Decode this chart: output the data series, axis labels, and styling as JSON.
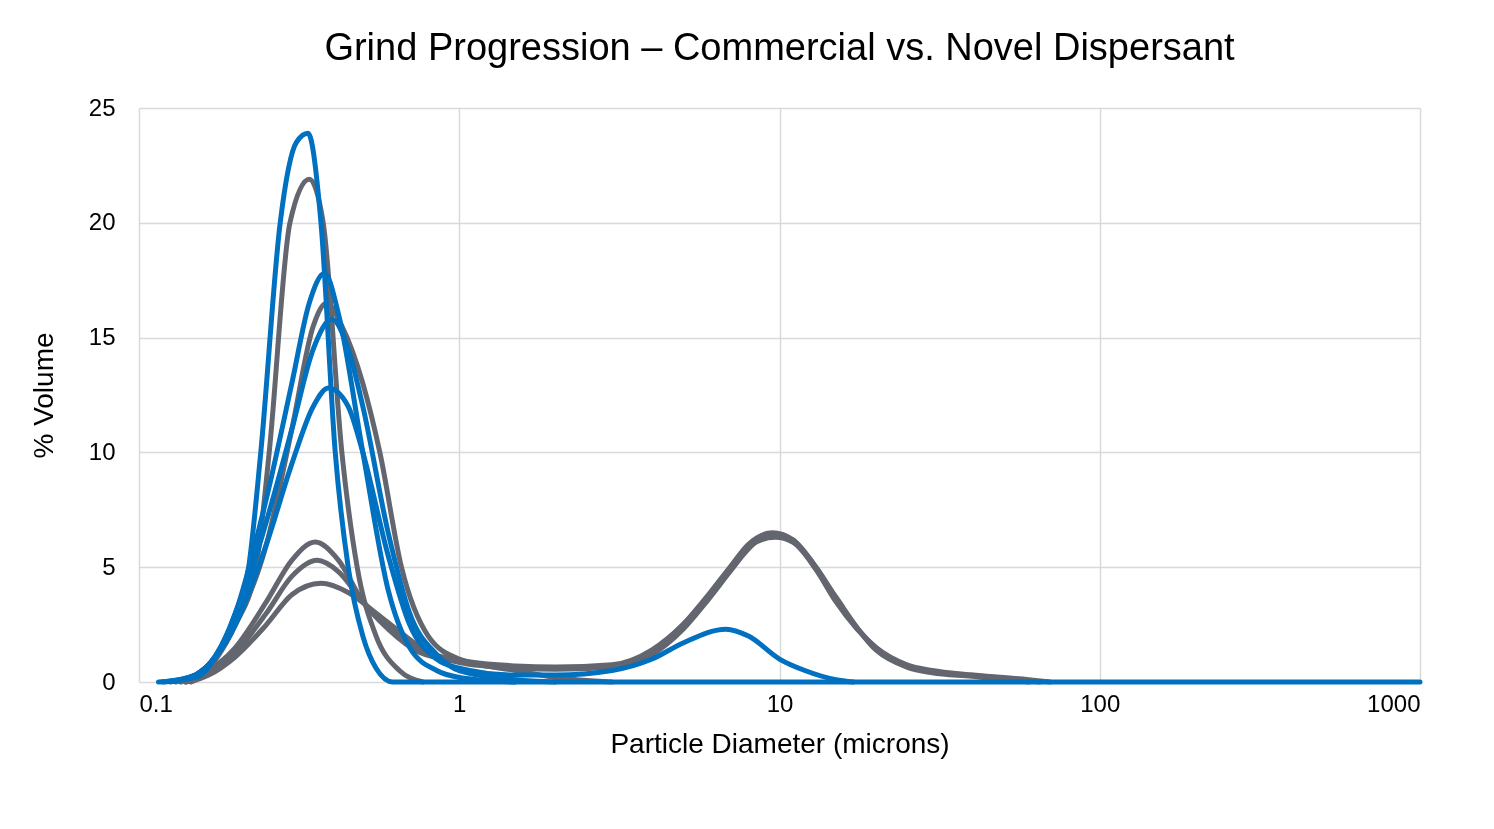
{
  "chart_data": {
    "type": "line",
    "title": "Grind Progression – Commercial vs. Novel Dispersant",
    "xlabel": "Particle Diameter (microns)",
    "ylabel": "% Volume",
    "log": "x",
    "xlim": [
      0.1,
      1000
    ],
    "xticks": [
      0.1,
      1,
      10,
      100,
      1000
    ],
    "ylim": [
      0,
      25
    ],
    "yticks": [
      0,
      5,
      10,
      15,
      20,
      25
    ],
    "grid": true,
    "legend": false,
    "line_style": "solid",
    "marker": "none",
    "series": [
      {
        "color": "#63666f",
        "x": [
          0.13,
          0.15,
          0.2,
          0.232,
          0.255,
          0.296,
          0.34,
          0.376,
          0.43,
          0.48,
          0.55,
          0.65,
          0.77
        ],
        "values": [
          0,
          0.3,
          2.5,
          5,
          10,
          20,
          21.9,
          20,
          10,
          5,
          2,
          0.5,
          0
        ]
      },
      {
        "color": "#63666f",
        "x": [
          0.14,
          0.16,
          0.2,
          0.25,
          0.3,
          0.35,
          0.385,
          0.43,
          0.5,
          0.565,
          0.66,
          0.8,
          1,
          1.5,
          2,
          3
        ],
        "values": [
          0,
          0.4,
          2.5,
          6,
          11,
          15.5,
          16.5,
          15.5,
          13,
          10,
          5,
          2,
          1,
          0.5,
          0.2,
          0
        ]
      },
      {
        "color": "#63666f",
        "x": [
          0.135,
          0.155,
          0.2,
          0.25,
          0.3,
          0.355,
          0.42,
          0.5,
          0.6,
          0.75,
          1,
          1.5,
          2,
          3,
          4,
          5,
          6,
          7,
          8,
          9.5,
          11,
          13,
          15,
          20,
          25,
          30,
          40,
          60,
          70
        ],
        "values": [
          0,
          0.3,
          1.5,
          3.5,
          5.3,
          6.1,
          5.3,
          3.5,
          2.3,
          1.3,
          0.9,
          0.65,
          0.6,
          0.7,
          1.3,
          2.5,
          3.8,
          5,
          6,
          6.5,
          6.2,
          5,
          3.6,
          1.5,
          0.7,
          0.45,
          0.3,
          0.1,
          0
        ]
      },
      {
        "color": "#63666f",
        "x": [
          0.14,
          0.16,
          0.2,
          0.25,
          0.3,
          0.36,
          0.42,
          0.5,
          0.6,
          0.75,
          1,
          1.5,
          2,
          3,
          4,
          5,
          6,
          7,
          8,
          9.3,
          11,
          13,
          15,
          20,
          25,
          30,
          40,
          55,
          65
        ],
        "values": [
          0,
          0.3,
          1.3,
          3,
          4.6,
          5.3,
          4.8,
          3.5,
          2.4,
          1.4,
          0.85,
          0.6,
          0.55,
          0.65,
          1.2,
          2.3,
          3.6,
          4.8,
          5.8,
          6.4,
          6.1,
          4.9,
          3.5,
          1.5,
          0.75,
          0.5,
          0.3,
          0.1,
          0
        ]
      },
      {
        "color": "#63666f",
        "x": [
          0.145,
          0.165,
          0.2,
          0.25,
          0.3,
          0.37,
          0.45,
          0.55,
          0.65,
          0.8,
          1,
          1.5,
          2,
          3,
          4,
          5,
          6,
          7,
          8,
          9.7,
          11,
          13,
          15,
          20,
          25,
          30,
          40,
          50,
          60
        ],
        "values": [
          0,
          0.3,
          1.1,
          2.5,
          3.8,
          4.3,
          3.9,
          3,
          2.2,
          1.3,
          0.95,
          0.7,
          0.65,
          0.75,
          1.4,
          2.5,
          3.7,
          4.9,
          5.9,
          6.3,
          6.1,
          5,
          3.7,
          1.4,
          0.65,
          0.4,
          0.25,
          0.1,
          0
        ]
      },
      {
        "color": "#0070c0",
        "x": [
          0.125,
          0.15,
          0.2,
          0.25,
          0.3,
          0.35,
          0.39,
          0.45,
          0.5,
          0.6,
          0.7,
          0.85,
          1,
          1.5,
          2,
          3,
          4,
          5,
          6.8,
          8,
          10,
          12,
          15,
          17
        ],
        "values": [
          0,
          0.3,
          2.5,
          6,
          9.5,
          12,
          12.8,
          12,
          10,
          5.5,
          2.5,
          1,
          0.6,
          0.3,
          0.3,
          0.5,
          1,
          1.7,
          2.3,
          2,
          1,
          0.5,
          0.1,
          0
        ]
      },
      {
        "color": "#0070c0",
        "x": [
          0.12,
          0.15,
          0.2,
          0.25,
          0.3,
          0.35,
          0.4,
          0.45,
          0.5,
          0.6,
          0.7,
          0.85,
          1,
          1.5,
          2
        ],
        "values": [
          0,
          0.3,
          2.8,
          7,
          11,
          14.5,
          15.8,
          14.5,
          12,
          6.5,
          3,
          1.2,
          0.5,
          0.1,
          0
        ]
      },
      {
        "color": "#0070c0",
        "x": [
          0.118,
          0.15,
          0.2,
          0.25,
          0.3,
          0.34,
          0.38,
          0.42,
          0.5,
          0.6,
          0.7,
          0.85,
          1,
          1.5
        ],
        "values": [
          0,
          0.3,
          3,
          8,
          13,
          16.5,
          17.8,
          16,
          10,
          4,
          1.5,
          0.5,
          0.2,
          0
        ]
      },
      {
        "color": "#0070c0",
        "x": [
          0.115,
          0.15,
          0.18,
          0.2,
          0.22,
          0.24,
          0.276,
          0.31,
          0.337,
          0.37,
          0.41,
          0.45,
          0.5,
          0.55,
          0.62,
          1000
        ],
        "values": [
          0,
          0.2,
          1.5,
          3,
          5,
          10,
          20,
          23.5,
          23.9,
          20,
          10,
          5,
          2,
          0.6,
          0,
          0
        ]
      }
    ]
  }
}
